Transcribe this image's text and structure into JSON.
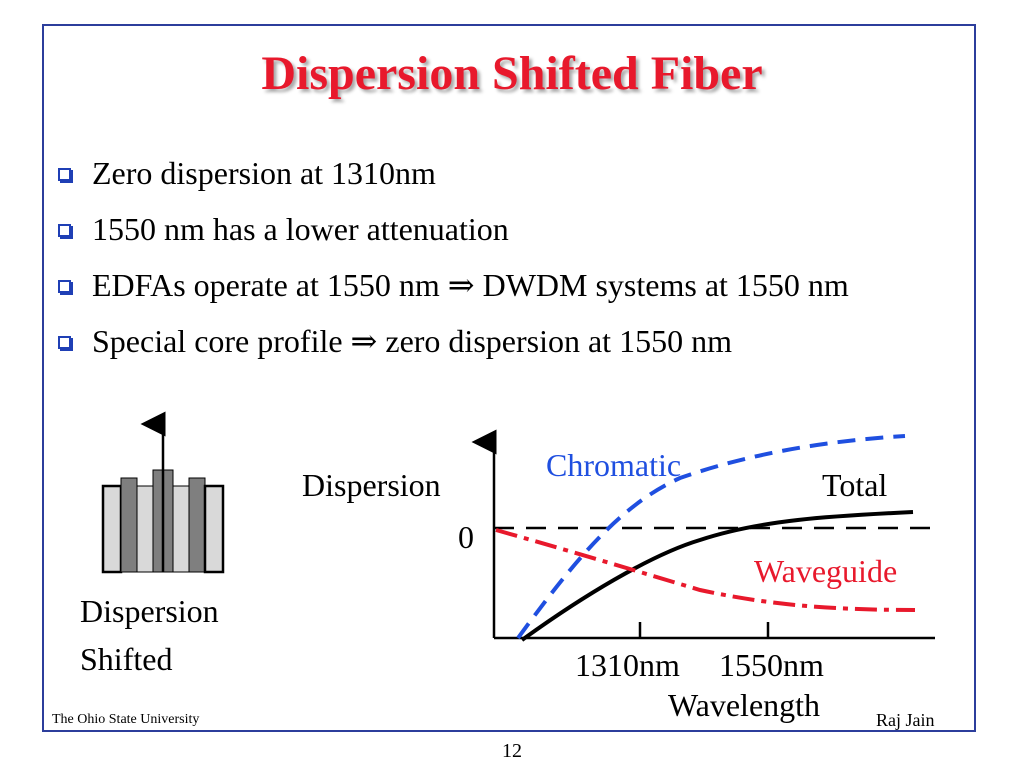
{
  "slide": {
    "title": "Dispersion Shifted Fiber",
    "bullets": [
      "Zero dispersion at 1310nm",
      "1550 nm has a lower attenuation",
      "EDFAs operate at 1550 nm ⇒ DWDM systems at 1550 nm",
      "Special core profile ⇒ zero dispersion at 1550 nm"
    ],
    "bullet_icon": "hollow-square-bullet-icon"
  },
  "fiber_figure": {
    "caption_line1": "Dispersion",
    "caption_line2": "Shifted"
  },
  "graph": {
    "y_label": "Dispersion",
    "zero_label": "0",
    "x_tick_1": "1310nm",
    "x_tick_2": "1550nm",
    "x_label": "Wavelength",
    "curve_chromatic": "Chromatic",
    "curve_total": "Total",
    "curve_waveguide": "Waveguide",
    "colors": {
      "chromatic": "#1f4fe0",
      "total": "#000000",
      "waveguide": "#e8192c"
    }
  },
  "footer": {
    "left": "The Ohio State University",
    "right": "Raj Jain",
    "page_number": "12"
  },
  "colors": {
    "title": "#e8192c",
    "frame": "#2c3e9c"
  }
}
